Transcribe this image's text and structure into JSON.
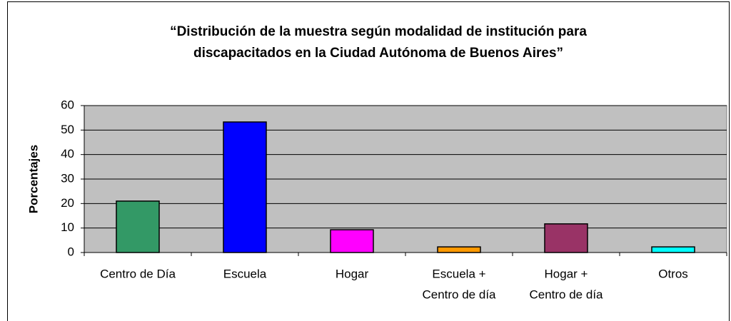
{
  "chart_data": {
    "type": "bar",
    "title": [
      "“Distribución de la muestra según modalidad de institución para",
      "discapacitados en la Ciudad Autónoma de Buenos Aires”"
    ],
    "ylabel": "Porcentajes",
    "categories": [
      [
        "Centro de Día"
      ],
      [
        "Escuela"
      ],
      [
        "Hogar"
      ],
      [
        "Escuela +",
        "Centro de día"
      ],
      [
        "Hogar +",
        "Centro de día"
      ],
      [
        "Otros"
      ]
    ],
    "values": [
      21,
      53.3,
      9.3,
      2.3,
      11.7,
      2.3
    ],
    "colors": [
      "#339966",
      "#0000ff",
      "#ff00ff",
      "#ff9900",
      "#993366",
      "#00ffff"
    ],
    "ylim": [
      0,
      60
    ],
    "yticks": [
      0,
      10,
      20,
      30,
      40,
      50,
      60
    ],
    "grid": true
  }
}
